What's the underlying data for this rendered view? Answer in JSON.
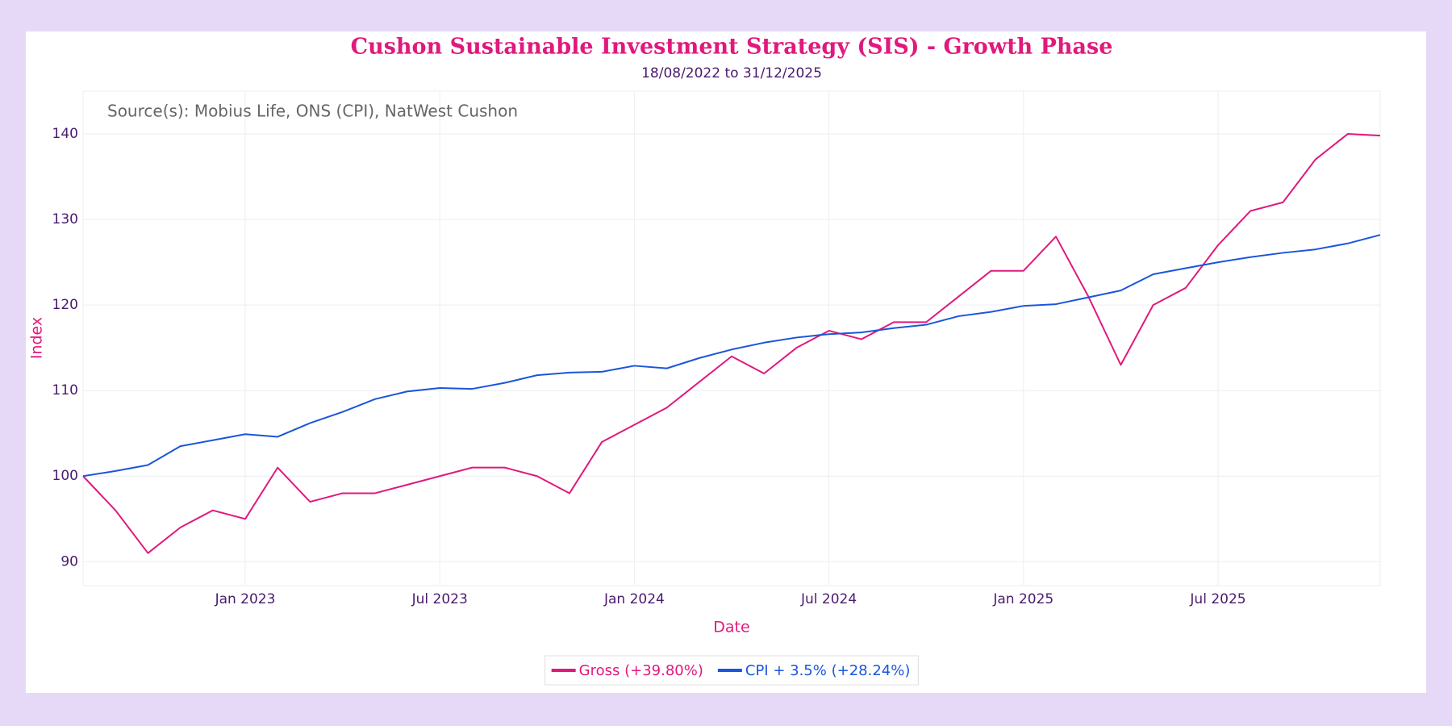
{
  "chart_data": {
    "type": "line",
    "title": "Cushon Sustainable Investment Strategy (SIS) - Growth Phase",
    "subtitle": "18/08/2022 to 31/12/2025",
    "annotation": "Source(s): Mobius Life, ONS (CPI), NatWest Cushon",
    "x_label": "Date",
    "y_label": "Index",
    "x": [
      "2022-08",
      "2022-09",
      "2022-10",
      "2022-11",
      "2022-12",
      "2023-01",
      "2023-02",
      "2023-03",
      "2023-04",
      "2023-05",
      "2023-06",
      "2023-07",
      "2023-08",
      "2023-09",
      "2023-10",
      "2023-11",
      "2023-12",
      "2024-01",
      "2024-02",
      "2024-03",
      "2024-04",
      "2024-05",
      "2024-06",
      "2024-07",
      "2024-08",
      "2024-09",
      "2024-10",
      "2024-11",
      "2024-12",
      "2025-01",
      "2025-02",
      "2025-03",
      "2025-04",
      "2025-05",
      "2025-06",
      "2025-07",
      "2025-08",
      "2025-09",
      "2025-10",
      "2025-11",
      "2025-12"
    ],
    "series": [
      {
        "name": "Gross (+39.80%)",
        "color": "#e0197d",
        "values": [
          100,
          96,
          91,
          94,
          96,
          95,
          101,
          97,
          98,
          98,
          99,
          100,
          101,
          101,
          100,
          98,
          104,
          106,
          108,
          111,
          114,
          112,
          115,
          117,
          116,
          118,
          118,
          121,
          124,
          124,
          128,
          121,
          113,
          120,
          122,
          127,
          131,
          132,
          137,
          140,
          139.8
        ]
      },
      {
        "name": "CPI + 3.5% (+28.24%)",
        "color": "#1a56db",
        "values": [
          100,
          100.6,
          101.3,
          103.5,
          104.2,
          104.9,
          104.6,
          106.2,
          107.5,
          109,
          109.9,
          110.3,
          110.2,
          110.9,
          111.8,
          112.1,
          112.2,
          112.9,
          112.6,
          113.8,
          114.8,
          115.6,
          116.2,
          116.6,
          116.8,
          117.3,
          117.7,
          118.7,
          119.2,
          119.9,
          120.1,
          120.9,
          121.7,
          123.6,
          124.3,
          125,
          125.6,
          126.1,
          126.5,
          127.2,
          128.2
        ]
      }
    ],
    "xlim": [
      "2022-08",
      "2025-12"
    ],
    "xticks": [
      {
        "value": "2023-01",
        "label": "Jan 2023"
      },
      {
        "value": "2023-07",
        "label": "Jul 2023"
      },
      {
        "value": "2024-01",
        "label": "Jan 2024"
      },
      {
        "value": "2024-07",
        "label": "Jul 2024"
      },
      {
        "value": "2025-01",
        "label": "Jan 2025"
      },
      {
        "value": "2025-07",
        "label": "Jul 2025"
      }
    ],
    "ylim": [
      87.2,
      145
    ],
    "yticks": [
      90,
      100,
      110,
      120,
      130,
      140
    ],
    "grid": true
  }
}
